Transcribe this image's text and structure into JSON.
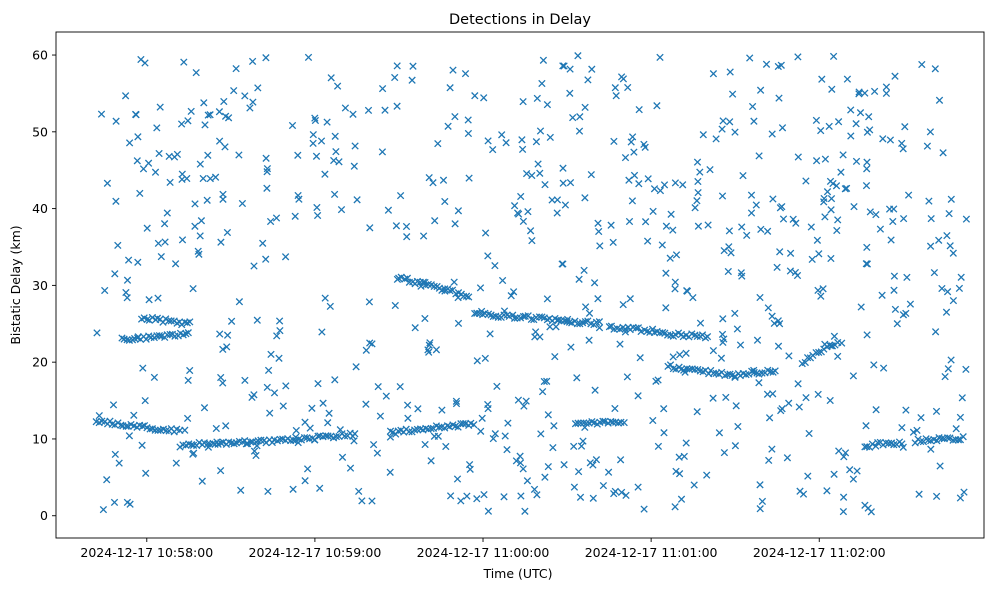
{
  "chart_data": {
    "type": "scatter",
    "title": "Detections in Delay",
    "xlabel": "Time (UTC)",
    "ylabel": "Bistatic Delay (km)",
    "marker": "x",
    "color": "#1f77b4",
    "x_units": "minutes since 2024-12-17 10:57:00",
    "xlim": [
      0.46,
      5.98
    ],
    "ylim": [
      -2.9,
      63.0
    ],
    "x_ticks": [
      {
        "value": 1,
        "label": "2024-12-17 10:58:00"
      },
      {
        "value": 2,
        "label": "2024-12-17 10:59:00"
      },
      {
        "value": 3,
        "label": "2024-12-17 11:00:00"
      },
      {
        "value": 4,
        "label": "2024-12-17 11:01:00"
      },
      {
        "value": 5,
        "label": "2024-12-17 11:02:00"
      }
    ],
    "y_ticks": [
      {
        "value": 0,
        "label": "0"
      },
      {
        "value": 10,
        "label": "10"
      },
      {
        "value": 20,
        "label": "20"
      },
      {
        "value": 30,
        "label": "30"
      },
      {
        "value": 40,
        "label": "40"
      },
      {
        "value": 50,
        "label": "50"
      },
      {
        "value": 60,
        "label": "60"
      }
    ],
    "x_range_data": [
      0.7,
      5.9
    ],
    "y_range_data": [
      0.5,
      60
    ],
    "clutter": {
      "description": "uniform random detections spanning the full time and delay ranges",
      "count": 760,
      "x_range": [
        0.7,
        5.9
      ],
      "y_range": [
        0.5,
        60
      ]
    },
    "tracks": [
      {
        "name": "track-near-10km",
        "x_start": 0.7,
        "x_end": 1.2,
        "y_start": 12.3,
        "y_end": 11.0,
        "step": 0.016
      },
      {
        "name": "track-near-10km-b",
        "x_start": 1.2,
        "x_end": 2.0,
        "y_start": 9.2,
        "y_end": 10.0,
        "step": 0.016
      },
      {
        "name": "track-near-10km-c",
        "x_start": 2.0,
        "x_end": 2.25,
        "y_start": 10.1,
        "y_end": 10.6,
        "step": 0.016
      },
      {
        "name": "track-near-11km",
        "x_start": 2.45,
        "x_end": 2.95,
        "y_start": 10.8,
        "y_end": 12.0,
        "step": 0.016
      },
      {
        "name": "track-near-12km",
        "x_start": 3.55,
        "x_end": 3.85,
        "y_start": 11.9,
        "y_end": 12.3,
        "step": 0.016
      },
      {
        "name": "track-near-9km",
        "x_start": 5.27,
        "x_end": 5.5,
        "y_start": 9.1,
        "y_end": 9.6,
        "step": 0.016
      },
      {
        "name": "track-near-9km-b",
        "x_start": 5.57,
        "x_end": 5.87,
        "y_start": 9.7,
        "y_end": 10.2,
        "step": 0.016
      },
      {
        "name": "track-25km",
        "x_start": 0.97,
        "x_end": 1.25,
        "y_start": 25.8,
        "y_end": 25.0,
        "step": 0.016
      },
      {
        "name": "track-23km",
        "x_start": 0.85,
        "x_end": 1.25,
        "y_start": 23.0,
        "y_end": 23.6,
        "step": 0.016
      },
      {
        "name": "track-30km",
        "x_start": 2.5,
        "x_end": 2.92,
        "y_start": 31.0,
        "y_end": 28.6,
        "step": 0.016
      },
      {
        "name": "track-26km",
        "x_start": 2.95,
        "x_end": 3.45,
        "y_start": 26.2,
        "y_end": 25.6,
        "step": 0.016
      },
      {
        "name": "track-25km-b",
        "x_start": 3.45,
        "x_end": 3.7,
        "y_start": 25.4,
        "y_end": 25.0,
        "step": 0.016
      },
      {
        "name": "track-24km",
        "x_start": 3.75,
        "x_end": 4.05,
        "y_start": 24.6,
        "y_end": 24.0,
        "step": 0.016
      },
      {
        "name": "track-23km-b",
        "x_start": 4.05,
        "x_end": 4.35,
        "y_start": 23.7,
        "y_end": 23.3,
        "step": 0.016
      },
      {
        "name": "track-18km-dip",
        "x_start": 4.1,
        "x_end": 4.5,
        "y_start": 19.5,
        "y_end": 18.2,
        "step": 0.016
      },
      {
        "name": "track-18km-rise",
        "x_start": 4.5,
        "x_end": 4.75,
        "y_start": 18.4,
        "y_end": 18.9,
        "step": 0.016
      },
      {
        "name": "track-20km-rise",
        "x_start": 4.9,
        "x_end": 5.12,
        "y_start": 20.0,
        "y_end": 22.8,
        "step": 0.016
      }
    ]
  }
}
